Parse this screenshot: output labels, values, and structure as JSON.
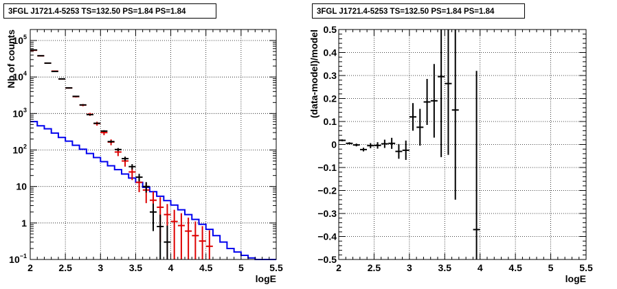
{
  "chart_data": [
    {
      "type": "line",
      "title": "3FGL J1721.4-5253 TS=132.50 PS=1.84 PS=1.84",
      "xlabel": "logE",
      "ylabel": "Nb of counts",
      "xlim": [
        2,
        5.5
      ],
      "ylim": [
        0.1,
        200000
      ],
      "yscale": "log",
      "grid": true,
      "xticks": [
        "2",
        "2.5",
        "3",
        "3.5",
        "4",
        "4.5",
        "5",
        "5.5"
      ],
      "yticks": [
        {
          "v": 0.1,
          "label": "10",
          "sup": "−1"
        },
        {
          "v": 1,
          "label": "1",
          "sup": ""
        },
        {
          "v": 10,
          "label": "10",
          "sup": ""
        },
        {
          "v": 100,
          "label": "10",
          "sup": "2"
        },
        {
          "v": 1000,
          "label": "10",
          "sup": "3"
        },
        {
          "v": 10000,
          "label": "10",
          "sup": "4"
        },
        {
          "v": 100000,
          "label": "10",
          "sup": "5"
        }
      ],
      "bin_edges": [
        2,
        2.1,
        2.2,
        2.3,
        2.4,
        2.5,
        2.6,
        2.7,
        2.8,
        2.9,
        3.0,
        3.1,
        3.2,
        3.3,
        3.4,
        3.5,
        3.6,
        3.7,
        3.8,
        3.9,
        4.0,
        4.1,
        4.2,
        4.3,
        4.4,
        4.5,
        4.6,
        4.7,
        4.8,
        4.9,
        5.0,
        5.1,
        5.2,
        5.3,
        5.4,
        5.5
      ],
      "series": [
        {
          "color": "#0000ee",
          "style": "step",
          "values": [
            600,
            460,
            380,
            290,
            220,
            175,
            135,
            105,
            80,
            62,
            48,
            37,
            29,
            22,
            17,
            13,
            9.5,
            7.2,
            5.4,
            4.1,
            3.1,
            2.3,
            1.7,
            1.25,
            0.92,
            0.67,
            0.45,
            0.3,
            0.2,
            0.16,
            0.13,
            0.11,
            0.1,
            0.1,
            0.1
          ]
        },
        {
          "color": "#dd0000",
          "style": "errorbar",
          "x": [
            2.05,
            2.15,
            2.25,
            2.35,
            2.45,
            2.55,
            2.65,
            2.75,
            2.85,
            2.95,
            3.05,
            3.15,
            3.25,
            3.35,
            3.45,
            3.55,
            3.65,
            3.75,
            3.85,
            3.95,
            4.05,
            4.15,
            4.25,
            4.35,
            4.45,
            4.55
          ],
          "y": [
            54000,
            38000,
            24000,
            14500,
            8800,
            5000,
            2900,
            1700,
            950,
            530,
            300,
            165,
            88,
            50,
            25,
            13,
            8,
            4.2,
            2.7,
            1.7,
            1.1,
            0.85,
            0.6,
            0.45,
            0.32,
            0.23
          ],
          "yerr": [
            600,
            500,
            400,
            300,
            250,
            200,
            150,
            120,
            90,
            65,
            45,
            30,
            20,
            15,
            10,
            6,
            4.5,
            3,
            2.4,
            1.6,
            1.2,
            1.0,
            0.8,
            0.65,
            0.5,
            0.4
          ]
        },
        {
          "color": "#000000",
          "style": "errorbar",
          "x": [
            2.05,
            2.15,
            2.25,
            2.35,
            2.45,
            2.55,
            2.65,
            2.75,
            2.85,
            2.95,
            3.05,
            3.15,
            3.25,
            3.35,
            3.45,
            3.55,
            3.65,
            3.75,
            3.85,
            3.95
          ],
          "y": [
            55000,
            38200,
            24000,
            14200,
            8850,
            5020,
            2950,
            1720,
            930,
            540,
            330,
            170,
            103,
            58,
            35,
            18,
            10,
            2.0,
            0.8,
            0.3
          ],
          "yerr": [
            230,
            195,
            155,
            120,
            94,
            71,
            54,
            41,
            30,
            23,
            18,
            13,
            10,
            7.6,
            5.9,
            4.2,
            3.2,
            1.4,
            0.9,
            0.55
          ]
        }
      ]
    },
    {
      "type": "scatter",
      "title": "3FGL J1721.4-5253 TS=132.50 PS=1.84 PS=1.84",
      "xlabel": "logE",
      "ylabel": "(data-model)/model",
      "xlim": [
        2,
        5.5
      ],
      "ylim": [
        -0.5,
        0.5
      ],
      "grid": true,
      "xticks": [
        "2",
        "2.5",
        "3",
        "3.5",
        "4",
        "4.5",
        "5",
        "5.5"
      ],
      "yticks": [
        "−0.5",
        "−0.4",
        "−0.3",
        "−0.2",
        "−0.1",
        "0",
        "0.1",
        "0.2",
        "0.3",
        "0.4",
        "0.5"
      ],
      "series": [
        {
          "color": "#000000",
          "x": [
            2.05,
            2.15,
            2.25,
            2.35,
            2.45,
            2.55,
            2.65,
            2.75,
            2.85,
            2.95,
            3.05,
            3.15,
            3.25,
            3.35,
            3.45,
            3.55,
            3.65,
            3.95
          ],
          "y": [
            0.018,
            0.005,
            -0.002,
            -0.022,
            -0.005,
            -0.004,
            0.003,
            0.005,
            -0.03,
            -0.025,
            0.12,
            0.075,
            0.185,
            0.19,
            0.295,
            0.265,
            0.15,
            -0.37
          ],
          "yerr": [
            0.004,
            0.005,
            0.006,
            0.008,
            0.011,
            0.014,
            0.018,
            0.024,
            0.032,
            0.042,
            0.06,
            0.08,
            0.1,
            0.16,
            0.35,
            0.31,
            0.39,
            0.69
          ]
        }
      ]
    }
  ]
}
